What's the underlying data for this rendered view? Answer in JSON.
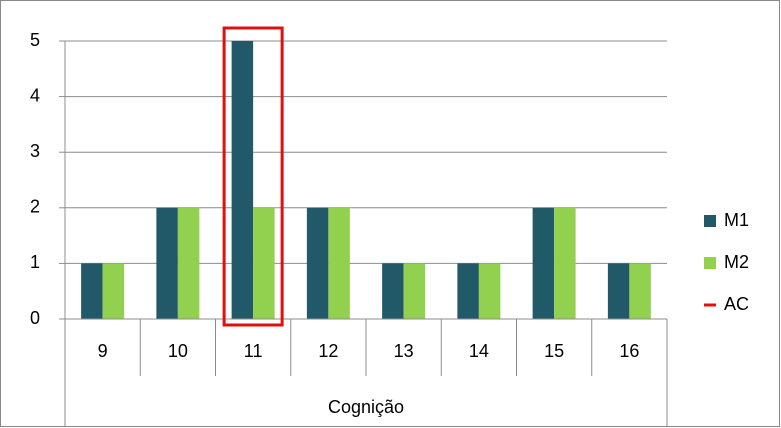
{
  "chart_data": {
    "type": "bar",
    "categories": [
      "9",
      "10",
      "11",
      "12",
      "13",
      "14",
      "15",
      "16"
    ],
    "series": [
      {
        "name": "M1",
        "color": "#215968",
        "values": [
          1,
          2,
          5,
          2,
          1,
          1,
          2,
          1
        ]
      },
      {
        "name": "M2",
        "color": "#92d050",
        "values": [
          1,
          2,
          2,
          2,
          1,
          1,
          2,
          1
        ]
      }
    ],
    "highlight": {
      "name": "AC",
      "color": "#e01010",
      "category": "11"
    },
    "xlabel": "Cognição",
    "ylim": [
      0,
      5
    ],
    "yticks": [
      0,
      1,
      2,
      3,
      4,
      5
    ],
    "grid": true,
    "legend": "right"
  }
}
